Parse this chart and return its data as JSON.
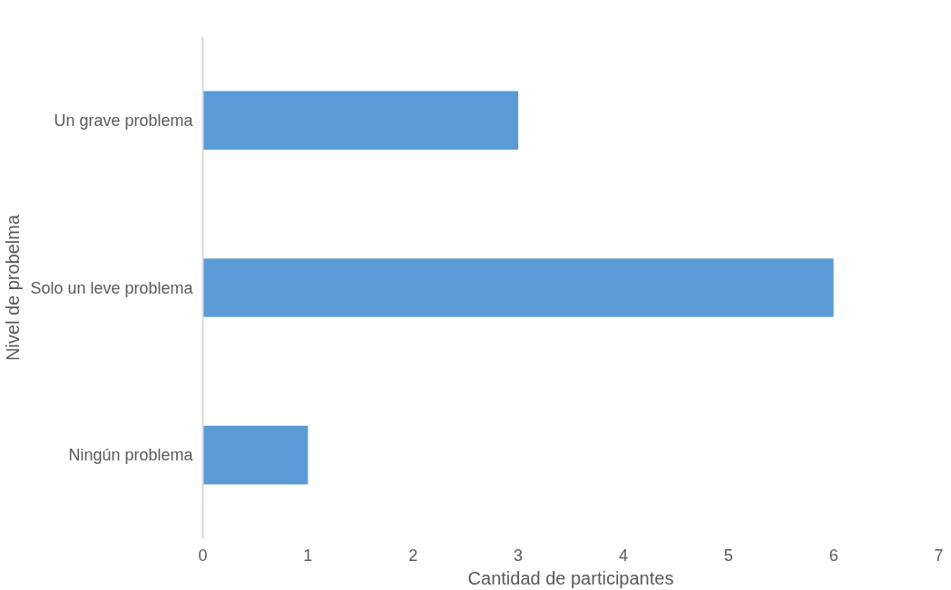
{
  "chart_data": {
    "type": "bar",
    "orientation": "horizontal",
    "xlabel": "Cantidad de participantes",
    "ylabel": "Nivel de probelma",
    "categories": [
      "Un grave problema",
      "Solo un leve problema",
      "Ningún problema"
    ],
    "values": [
      3,
      6,
      1
    ],
    "color": "#5b9bd5",
    "xlim": [
      0,
      7
    ],
    "xticks": [
      0,
      1,
      2,
      3,
      4,
      5,
      6,
      7
    ],
    "grid": false
  }
}
